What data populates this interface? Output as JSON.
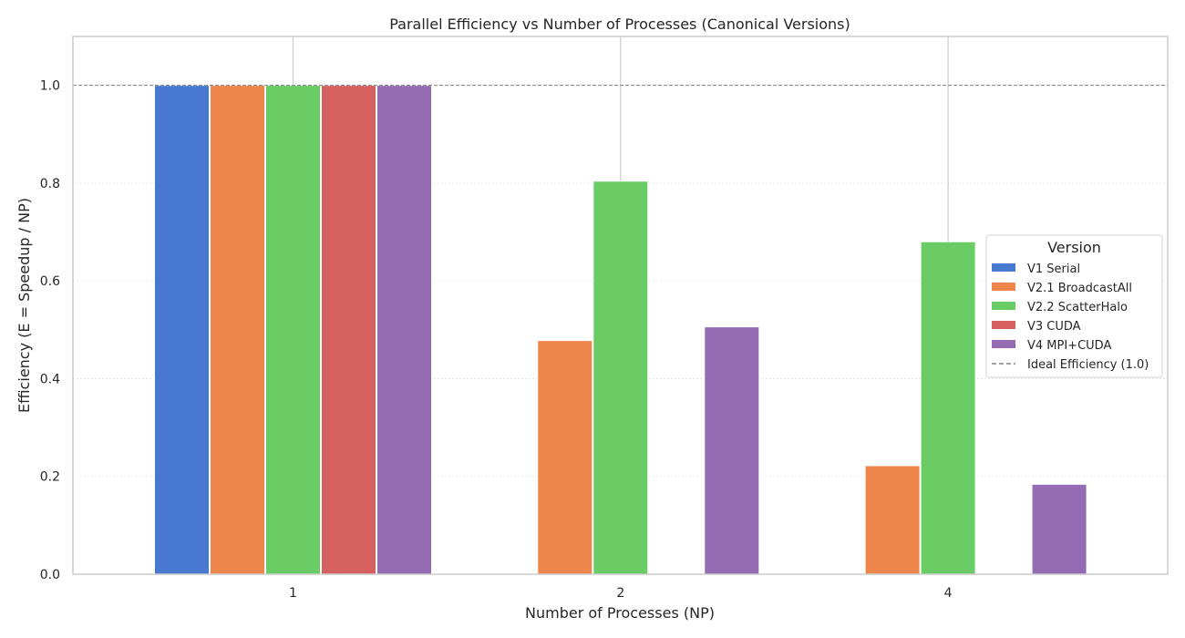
{
  "chart_data": {
    "type": "bar",
    "title": "Parallel Efficiency vs Number of Processes (Canonical Versions)",
    "xlabel": "Number of Processes (NP)",
    "ylabel": "Efficiency (E = Speedup / NP)",
    "categories": [
      "1",
      "2",
      "4"
    ],
    "ylim": [
      0,
      1.1
    ],
    "yticks": [
      "0.0",
      "0.2",
      "0.4",
      "0.6",
      "0.8",
      "1.0"
    ],
    "grid": true,
    "series": [
      {
        "name": "V1 Serial",
        "color": "#4878d0",
        "values": [
          1.0,
          null,
          null
        ]
      },
      {
        "name": "V2.1 BroadcastAll",
        "color": "#ee854a",
        "values": [
          1.0,
          0.478,
          0.222
        ]
      },
      {
        "name": "V2.2 ScatterHalo",
        "color": "#6acc64",
        "values": [
          1.0,
          0.804,
          0.68
        ]
      },
      {
        "name": "V3 CUDA",
        "color": "#d65f5f",
        "values": [
          1.0,
          null,
          null
        ]
      },
      {
        "name": "V4 MPI+CUDA",
        "color": "#956cb4",
        "values": [
          1.0,
          0.506,
          0.184
        ]
      }
    ],
    "reference_line": {
      "name": "Ideal Efficiency (1.0)",
      "value": 1.0,
      "color": "#808080",
      "style": "dashed"
    },
    "legend": {
      "title": "Version",
      "placement": "right"
    }
  }
}
